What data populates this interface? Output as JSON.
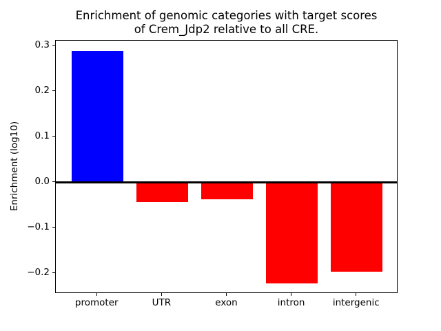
{
  "chart_data": {
    "type": "bar",
    "title": "Enrichment of genomic categories with target scores\nof Crem_Jdp2 relative to all CRE.",
    "ylabel": "Enrichment (log10)",
    "xlabel": "",
    "categories": [
      "promoter",
      "UTR",
      "exon",
      "intron",
      "intergenic"
    ],
    "values": [
      0.288,
      -0.043,
      -0.037,
      -0.223,
      -0.197
    ],
    "bar_colors": [
      "#0000ff",
      "#ff0000",
      "#ff0000",
      "#ff0000",
      "#ff0000"
    ],
    "yticks": [
      0.3,
      0.2,
      0.1,
      0.0,
      -0.1,
      -0.2
    ],
    "ytick_labels": [
      "0.3",
      "0.2",
      "0.1",
      "0.0",
      "−0.1",
      "−0.2"
    ],
    "ylim": [
      -0.245,
      0.311
    ],
    "bar_width_fraction": 0.8,
    "x_padding": 0.64,
    "grid": false,
    "zero_line": true,
    "positive_color": "#0000ff",
    "negative_color": "#ff0000",
    "axis_color": "#000000",
    "background_color": "#ffffff"
  }
}
